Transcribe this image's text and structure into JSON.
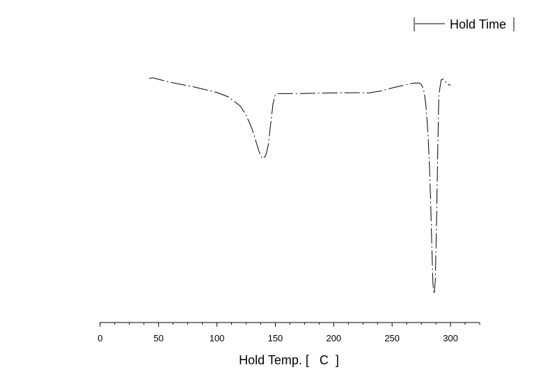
{
  "chart_data": {
    "type": "line",
    "title": "",
    "xlabel": "Hold Temp. [   C  ]",
    "ylabel": "",
    "xlim": [
      -0.5,
      325
    ],
    "ylim": [
      0,
      1
    ],
    "y_ticks_shown": false,
    "x_ticks": [
      0,
      50,
      100,
      150,
      200,
      250,
      300
    ],
    "x_tick_labels": [
      "0",
      "50",
      "100",
      "150",
      "200",
      "250",
      "300"
    ],
    "grid": false,
    "legend_position": "top-right",
    "series": [
      {
        "name": "Hold Time",
        "color": "#000000",
        "line_style": "dash-dot",
        "x": [
          42,
          45,
          60,
          80,
          100,
          110,
          120,
          125,
          130,
          133,
          136,
          138,
          140,
          142,
          144,
          146,
          148,
          150,
          152,
          155,
          160,
          180,
          200,
          220,
          230,
          240,
          250,
          260,
          265,
          270,
          273,
          275,
          276,
          277,
          278,
          279,
          280,
          281,
          282,
          283,
          284,
          285,
          286,
          287,
          288,
          289,
          290,
          292,
          294,
          296,
          298,
          300
        ],
        "y": [
          0.992,
          0.995,
          0.975,
          0.955,
          0.93,
          0.91,
          0.87,
          0.83,
          0.77,
          0.72,
          0.67,
          0.645,
          0.638,
          0.655,
          0.7,
          0.79,
          0.88,
          0.92,
          0.925,
          0.925,
          0.925,
          0.926,
          0.928,
          0.929,
          0.928,
          0.936,
          0.95,
          0.962,
          0.968,
          0.972,
          0.972,
          0.965,
          0.955,
          0.94,
          0.91,
          0.87,
          0.8,
          0.72,
          0.6,
          0.45,
          0.25,
          0.08,
          0.04,
          0.1,
          0.35,
          0.65,
          0.92,
          0.985,
          0.99,
          0.975,
          0.965,
          0.962
        ]
      }
    ]
  }
}
